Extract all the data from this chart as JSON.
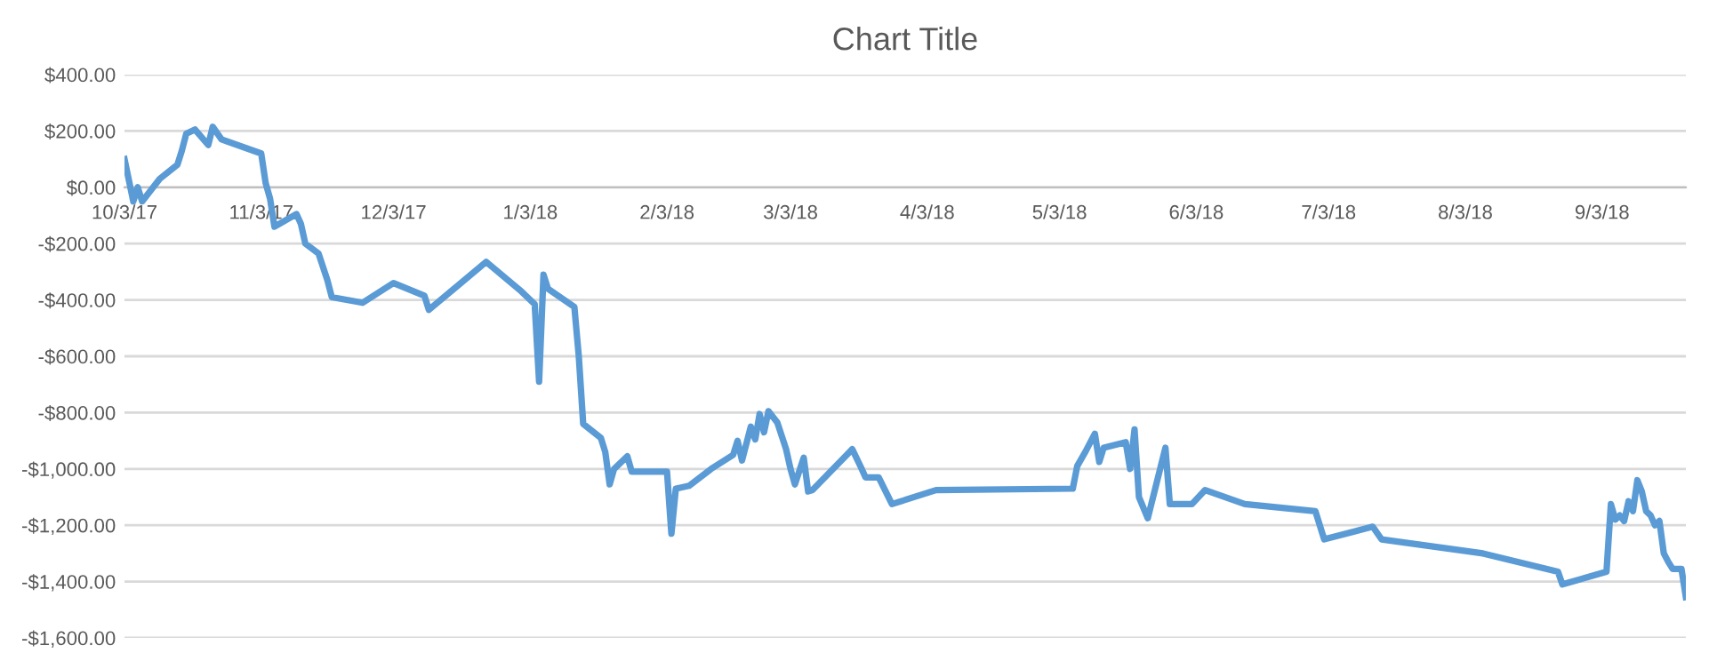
{
  "chart_data": {
    "type": "line",
    "title": "Chart Title",
    "x": [
      "2017-10-03",
      "2017-10-05",
      "2017-10-06",
      "2017-10-07",
      "2017-10-11",
      "2017-10-15",
      "2017-10-16",
      "2017-10-17",
      "2017-10-19",
      "2017-10-22",
      "2017-10-23",
      "2017-10-25",
      "2017-11-03",
      "2017-11-04",
      "2017-11-05",
      "2017-11-06",
      "2017-11-11",
      "2017-11-12",
      "2017-11-13",
      "2017-11-16",
      "2017-11-18",
      "2017-11-19",
      "2017-11-26",
      "2017-12-03",
      "2017-12-10",
      "2017-12-11",
      "2017-12-24",
      "2018-01-01",
      "2018-01-04",
      "2018-01-05",
      "2018-01-06",
      "2018-01-07",
      "2018-01-13",
      "2018-01-14",
      "2018-01-15",
      "2018-01-19",
      "2018-01-20",
      "2018-01-21",
      "2018-01-22",
      "2018-01-25",
      "2018-01-26",
      "2018-02-03",
      "2018-02-04",
      "2018-02-05",
      "2018-02-08",
      "2018-02-13",
      "2018-02-18",
      "2018-02-19",
      "2018-02-20",
      "2018-02-22",
      "2018-02-23",
      "2018-02-24",
      "2018-02-25",
      "2018-02-26",
      "2018-02-28",
      "2018-03-02",
      "2018-03-03",
      "2018-03-04",
      "2018-03-06",
      "2018-03-07",
      "2018-03-08",
      "2018-03-17",
      "2018-03-19",
      "2018-03-20",
      "2018-03-23",
      "2018-03-26",
      "2018-04-05",
      "2018-05-06",
      "2018-05-07",
      "2018-05-09",
      "2018-05-11",
      "2018-05-12",
      "2018-05-13",
      "2018-05-18",
      "2018-05-19",
      "2018-05-20",
      "2018-05-21",
      "2018-05-23",
      "2018-05-27",
      "2018-05-28",
      "2018-06-02",
      "2018-06-05",
      "2018-06-14",
      "2018-06-30",
      "2018-07-02",
      "2018-07-13",
      "2018-07-15",
      "2018-08-07",
      "2018-08-24",
      "2018-08-25",
      "2018-09-04",
      "2018-09-05",
      "2018-09-06",
      "2018-09-07",
      "2018-09-08",
      "2018-09-09",
      "2018-09-10",
      "2018-09-11",
      "2018-09-12",
      "2018-09-13",
      "2018-09-14",
      "2018-09-15",
      "2018-09-16",
      "2018-09-17",
      "2018-09-18",
      "2018-09-19",
      "2018-09-21",
      "2018-09-22"
    ],
    "series": [
      {
        "color": "#5b9bd5",
        "values": [
          100,
          -50,
          0,
          -50,
          30,
          80,
          130,
          190,
          205,
          150,
          215,
          170,
          120,
          15,
          -40,
          -140,
          -95,
          -130,
          -200,
          -235,
          -330,
          -390,
          -410,
          -340,
          -385,
          -435,
          -265,
          -370,
          -415,
          -690,
          -310,
          -360,
          -425,
          -600,
          -840,
          -890,
          -940,
          -1055,
          -1000,
          -955,
          -1010,
          -1010,
          -1230,
          -1070,
          -1060,
          -1000,
          -950,
          -900,
          -970,
          -850,
          -895,
          -805,
          -870,
          -795,
          -835,
          -930,
          -1000,
          -1055,
          -960,
          -1080,
          -1075,
          -930,
          -995,
          -1030,
          -1030,
          -1125,
          -1075,
          -1070,
          -990,
          -935,
          -875,
          -975,
          -925,
          -905,
          -1000,
          -860,
          -1100,
          -1175,
          -925,
          -1125,
          -1125,
          -1075,
          -1125,
          -1150,
          -1250,
          -1205,
          -1250,
          -1300,
          -1365,
          -1410,
          -1365,
          -1125,
          -1180,
          -1165,
          -1185,
          -1115,
          -1150,
          -1040,
          -1080,
          -1150,
          -1165,
          -1200,
          -1185,
          -1300,
          -1330,
          -1355,
          -1355,
          -1455
        ]
      }
    ],
    "xlim": [
      "2017-10-03",
      "2018-09-22"
    ],
    "xticks": [
      {
        "value": "2017-10-03",
        "label": "10/3/17"
      },
      {
        "value": "2017-11-03",
        "label": "11/3/17"
      },
      {
        "value": "2017-12-03",
        "label": "12/3/17"
      },
      {
        "value": "2018-01-03",
        "label": "1/3/18"
      },
      {
        "value": "2018-02-03",
        "label": "2/3/18"
      },
      {
        "value": "2018-03-03",
        "label": "3/3/18"
      },
      {
        "value": "2018-04-03",
        "label": "4/3/18"
      },
      {
        "value": "2018-05-03",
        "label": "5/3/18"
      },
      {
        "value": "2018-06-03",
        "label": "6/3/18"
      },
      {
        "value": "2018-07-03",
        "label": "7/3/18"
      },
      {
        "value": "2018-08-03",
        "label": "8/3/18"
      },
      {
        "value": "2018-09-03",
        "label": "9/3/18"
      }
    ],
    "ylim": [
      -1600,
      400
    ],
    "yticks": [
      {
        "value": 400,
        "label": "$400.00"
      },
      {
        "value": 200,
        "label": "$200.00"
      },
      {
        "value": 0,
        "label": "$0.00"
      },
      {
        "value": -200,
        "label": "-$200.00"
      },
      {
        "value": -400,
        "label": "-$400.00"
      },
      {
        "value": -600,
        "label": "-$600.00"
      },
      {
        "value": -800,
        "label": "-$800.00"
      },
      {
        "value": -1000,
        "label": "-$1,000.00"
      },
      {
        "value": -1200,
        "label": "-$1,200.00"
      },
      {
        "value": -1400,
        "label": "-$1,400.00"
      },
      {
        "value": -1600,
        "label": "-$1,600.00"
      }
    ],
    "grid": "y",
    "legend": false,
    "marker": "none",
    "line_style": "solid"
  }
}
